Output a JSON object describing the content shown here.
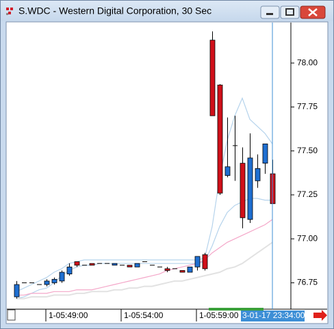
{
  "window": {
    "title": "S.WDC - Western Digital Corporation, 30 Sec"
  },
  "chart_data": {
    "type": "candlestick",
    "categories": [
      null,
      null,
      null,
      null,
      "1-05:49:00",
      null,
      null,
      null,
      null,
      null,
      null,
      null,
      null,
      null,
      "1-05:54:00",
      null,
      null,
      null,
      null,
      null,
      null,
      null,
      null,
      null,
      "1-05:59:00",
      null,
      null,
      null,
      null,
      null,
      null,
      null,
      null,
      null,
      null
    ],
    "cursor_label": "3-01-17 23:34:00",
    "open": [
      76.67,
      76.75,
      76.75,
      76.74,
      76.74,
      76.75,
      76.76,
      76.8,
      76.87,
      76.85,
      76.86,
      76.86,
      76.86,
      76.85,
      76.85,
      76.85,
      76.84,
      76.87,
      76.85,
      76.84,
      76.83,
      76.83,
      76.82,
      76.81,
      76.84,
      76.91,
      78.13,
      77.875,
      77.36,
      77.53,
      77.43,
      77.11,
      77.33,
      77.43,
      77.37
    ],
    "high": [
      76.76,
      76.75,
      76.75,
      76.74,
      76.77,
      76.78,
      76.82,
      76.86,
      76.87,
      76.85,
      76.86,
      76.86,
      76.86,
      76.86,
      76.85,
      76.85,
      76.86,
      76.87,
      76.85,
      76.84,
      76.84,
      76.83,
      76.82,
      76.84,
      76.9,
      76.92,
      78.18,
      77.88,
      77.69,
      77.7,
      77.52,
      77.6,
      77.48,
      77.54,
      77.45
    ],
    "low": [
      76.66,
      76.75,
      76.75,
      76.74,
      76.73,
      76.74,
      76.75,
      76.79,
      76.84,
      76.85,
      76.85,
      76.86,
      76.86,
      76.85,
      76.85,
      76.84,
      76.84,
      76.87,
      76.85,
      76.84,
      76.81,
      76.83,
      76.81,
      76.81,
      76.82,
      76.82,
      77.7,
      77.25,
      77.35,
      77.33,
      77.06,
      77.09,
      77.29,
      77.37,
      77.2
    ],
    "close": [
      76.74,
      76.75,
      76.75,
      76.74,
      76.76,
      76.77,
      76.81,
      76.84,
      76.85,
      76.85,
      76.85,
      76.86,
      76.86,
      76.86,
      76.85,
      76.84,
      76.86,
      76.87,
      76.85,
      76.84,
      76.82,
      76.83,
      76.81,
      76.84,
      76.9,
      76.83,
      77.7,
      77.26,
      77.41,
      77.53,
      77.12,
      77.46,
      77.4,
      77.54,
      77.2
    ],
    "up_color": "#1f6fd1",
    "down_color": "#d0101a",
    "overlays": [
      {
        "color": "#b5d3ec",
        "values": [
          76.7,
          76.72,
          76.74,
          76.76,
          76.78,
          76.81,
          76.83,
          76.86,
          76.87,
          76.88,
          76.88,
          76.88,
          76.88,
          76.88,
          76.88,
          76.88,
          76.88,
          76.88,
          76.88,
          76.88,
          76.88,
          76.88,
          76.88,
          76.88,
          76.88,
          76.89,
          77.07,
          77.35,
          77.56,
          77.7,
          77.8,
          77.68,
          77.64,
          77.6,
          77.54
        ]
      },
      {
        "color": "#b5d3ec",
        "values": [
          76.66,
          76.67,
          76.69,
          76.71,
          76.72,
          76.75,
          76.79,
          76.82,
          76.84,
          76.85,
          76.85,
          76.86,
          76.86,
          76.86,
          76.86,
          76.86,
          76.86,
          76.86,
          76.86,
          76.86,
          76.86,
          76.86,
          76.86,
          76.86,
          76.86,
          76.87,
          76.96,
          77.07,
          77.15,
          77.19,
          77.21,
          77.23,
          77.23,
          77.22,
          77.22
        ]
      },
      {
        "color": "#f4a6c8",
        "values": [
          76.68,
          76.68,
          76.69,
          76.69,
          76.69,
          76.7,
          76.7,
          76.7,
          76.71,
          76.71,
          76.71,
          76.72,
          76.73,
          76.74,
          76.75,
          76.76,
          76.77,
          76.78,
          76.79,
          76.8,
          76.82,
          76.83,
          76.84,
          76.85,
          76.86,
          76.88,
          76.92,
          76.95,
          76.98,
          77.0,
          77.02,
          77.04,
          77.06,
          77.08,
          77.11
        ]
      },
      {
        "color": "#e2e2e2",
        "values": [
          76.66,
          76.66,
          76.67,
          76.67,
          76.67,
          76.68,
          76.68,
          76.68,
          76.69,
          76.69,
          76.7,
          76.7,
          76.7,
          76.71,
          76.71,
          76.72,
          76.72,
          76.73,
          76.73,
          76.74,
          76.75,
          76.76,
          76.76,
          76.77,
          76.78,
          76.79,
          76.8,
          76.81,
          76.83,
          76.84,
          76.86,
          76.89,
          76.92,
          76.95,
          76.98
        ]
      }
    ],
    "ylim": [
      76.6,
      78.23
    ],
    "yticks": [
      76.75,
      {
        "value": 77,
        "label": "77.00"
      },
      77.25,
      {
        "value": 77.5,
        "label": "77.50"
      },
      77.75,
      {
        "value": 78,
        "label": "78.00"
      }
    ]
  }
}
